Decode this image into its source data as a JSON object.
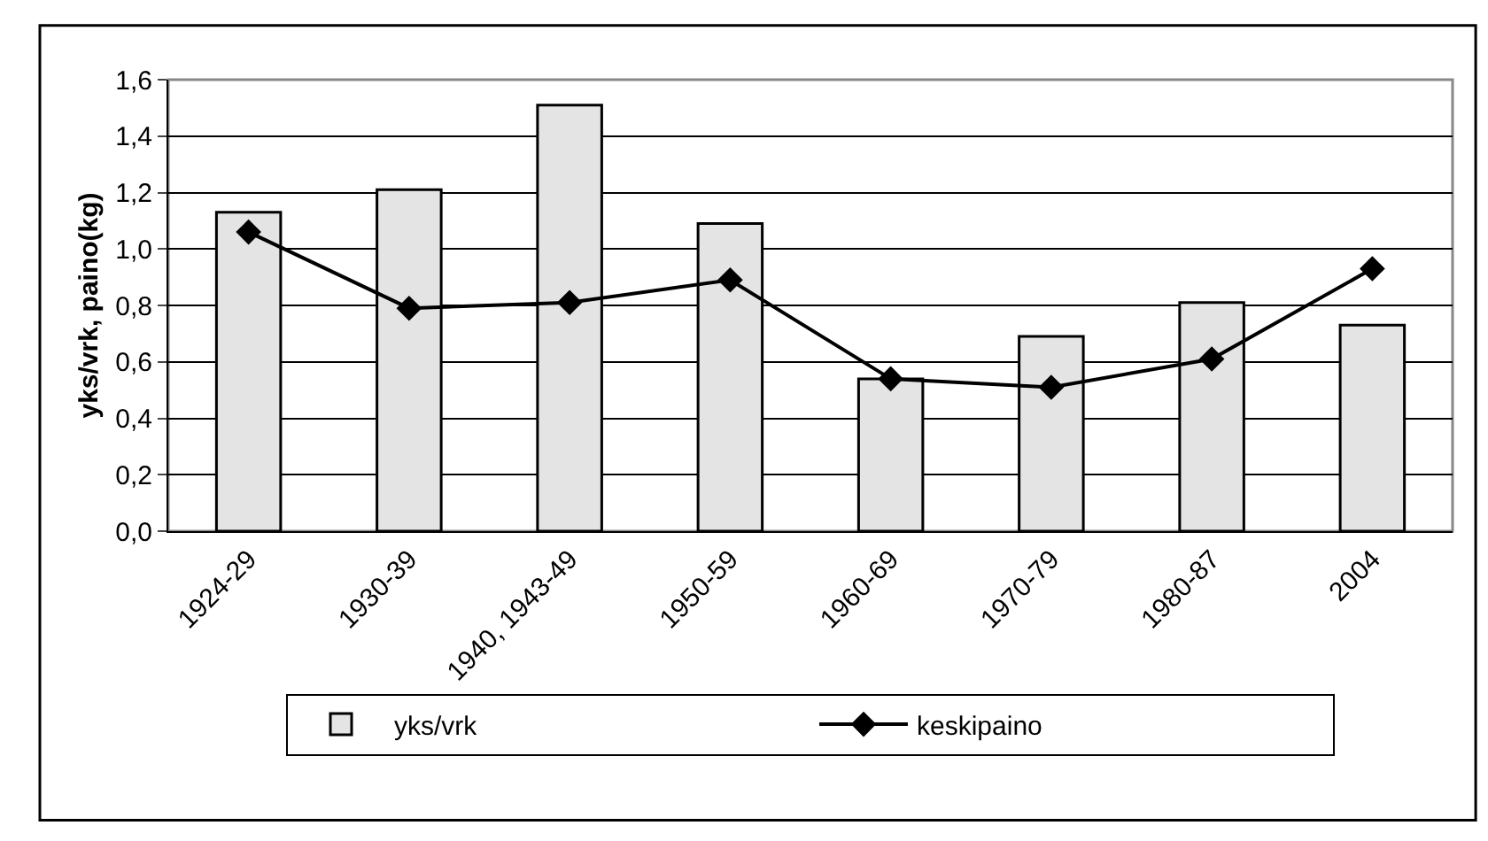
{
  "chart_data": {
    "type": "bar",
    "ylabel": "yks/vrk, paino(kg)",
    "categories": [
      "1924-29",
      "1930-39",
      "1940, 1943-49",
      "1950-59",
      "1960-69",
      "1970-79",
      "1980-87",
      "2004"
    ],
    "series": [
      {
        "name": "yks/vrk",
        "color": "#e4e4e4",
        "values": [
          1.13,
          1.21,
          1.51,
          1.09,
          0.54,
          0.69,
          0.81,
          0.73
        ]
      },
      {
        "name": "keskipaino",
        "type": "line",
        "color": "#000000",
        "values": [
          1.06,
          0.79,
          0.81,
          0.89,
          0.54,
          0.51,
          0.61,
          0.93
        ]
      }
    ],
    "ylim": [
      0,
      1.6
    ],
    "yticks": [
      {
        "value": 0,
        "label": "0,0"
      },
      {
        "value": 0.2,
        "label": "0,2"
      },
      {
        "value": 0.4,
        "label": "0,4"
      },
      {
        "value": 0.6,
        "label": "0,6"
      },
      {
        "value": 0.8,
        "label": "0,8"
      },
      {
        "value": 1,
        "label": "1,0"
      },
      {
        "value": 1.2,
        "label": "1,2"
      },
      {
        "value": 1.4,
        "label": "1,4"
      },
      {
        "value": 1.6,
        "label": "1,6"
      }
    ],
    "grid": "y",
    "legend": "bottom",
    "marker": "diamond",
    "line_style": "solid"
  }
}
